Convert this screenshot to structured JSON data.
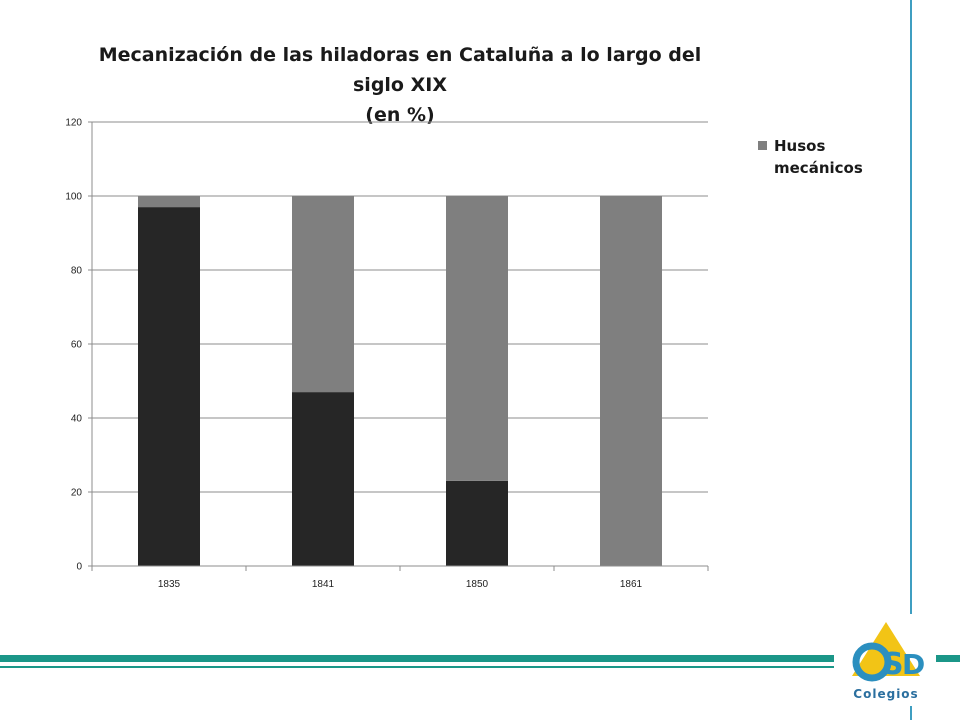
{
  "chart_data": {
    "type": "bar",
    "stacked": true,
    "title_line1": "Mecanización de las hiladoras en Cataluña a lo largo del siglo XIX",
    "title_line2": "(en %)",
    "categories": [
      "1835",
      "1841",
      "1850",
      "1861"
    ],
    "series": [
      {
        "values": [
          97,
          47,
          23,
          0
        ],
        "color": "#262626"
      },
      {
        "name": "Husos mecánicos",
        "values": [
          3,
          53,
          77,
          100
        ],
        "color": "#7f7f7f"
      }
    ],
    "ylim": [
      0,
      120
    ],
    "yticks": [
      0,
      20,
      40,
      60,
      80,
      100,
      120
    ],
    "grid": true,
    "legend_position": "right"
  },
  "legend": {
    "label": "Husos mecánicos"
  },
  "logo": {
    "text": "Colegios",
    "letters": "CSD"
  }
}
